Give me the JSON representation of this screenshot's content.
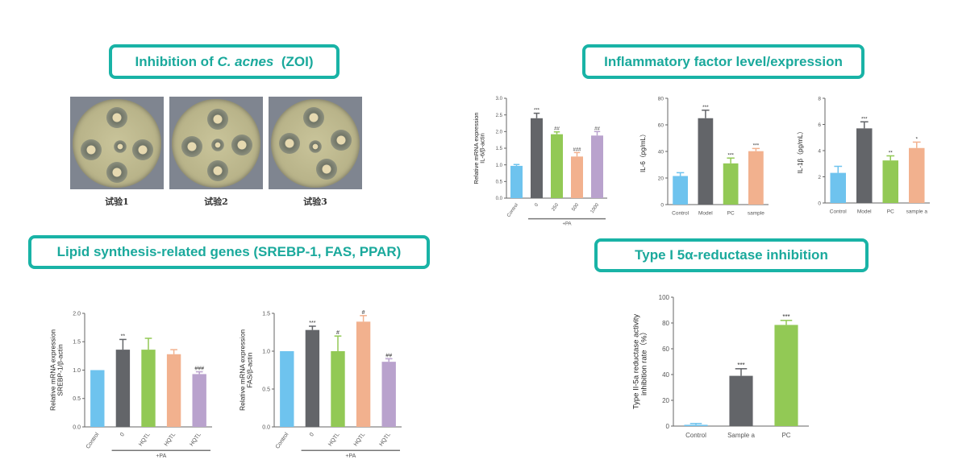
{
  "titles": {
    "zoi_prefix": "Inhibition of ",
    "zoi_italic": "C. acnes",
    "zoi_suffix": "  (ZOI)",
    "inflammatory": "Inflammatory factor level/expression",
    "lipid": "Lipid synthesis-related genes  (SREBP-1, FAS, PPAR)",
    "reductase": "Type I 5α-reductase inhibition"
  },
  "plates": [
    {
      "label": "试验1"
    },
    {
      "label": "试验2"
    },
    {
      "label": "试验3"
    }
  ],
  "colors": {
    "accent": "#19b3a6",
    "blue": "#6ec3ee",
    "gray": "#636569",
    "green": "#92c955",
    "salmon": "#f2b18e",
    "purple": "#b9a2cd"
  },
  "chart_data": [
    {
      "id": "il6_mrna",
      "type": "bar",
      "ylabel": [
        "Relative mRNA expression",
        "IL-6/β-actin"
      ],
      "ylim": [
        0,
        3
      ],
      "ticks": [
        0,
        0.5,
        1,
        1.5,
        2,
        2.5,
        3
      ],
      "categories": [
        "Control",
        "0",
        "250",
        "500",
        "1000"
      ],
      "values": [
        0.97,
        2.4,
        1.92,
        1.25,
        1.88
      ],
      "errors": [
        0.04,
        0.15,
        0.07,
        0.12,
        0.12
      ],
      "annotations": [
        "",
        "***",
        "##",
        "###",
        "##"
      ],
      "colors": [
        "blue",
        "gray",
        "green",
        "salmon",
        "purple"
      ],
      "rotate_labels": true,
      "group_label": "+PA",
      "group_span": [
        1,
        4
      ]
    },
    {
      "id": "il6_protein",
      "type": "bar",
      "ylabel": [
        "IL-6（pg/mL）"
      ],
      "ylim": [
        0,
        80
      ],
      "ticks": [
        0,
        20,
        40,
        60,
        80
      ],
      "categories": [
        "Control",
        "Model",
        "PC",
        "sample"
      ],
      "values": [
        21.5,
        65,
        31,
        40.2
      ],
      "errors": [
        2.5,
        6,
        4,
        2
      ],
      "annotations": [
        "",
        "***",
        "***",
        "***"
      ],
      "colors": [
        "blue",
        "gray",
        "green",
        "salmon"
      ]
    },
    {
      "id": "il1b",
      "type": "bar",
      "ylabel": [
        "IL-1β（pg/mL）"
      ],
      "ylim": [
        0,
        8
      ],
      "ticks": [
        0,
        2,
        4,
        6,
        8
      ],
      "categories": [
        "Control",
        "Model",
        "PC",
        "sample a"
      ],
      "values": [
        2.3,
        5.7,
        3.25,
        4.2
      ],
      "errors": [
        0.5,
        0.5,
        0.35,
        0.45
      ],
      "annotations": [
        "",
        "***",
        "**",
        "*"
      ],
      "colors": [
        "blue",
        "gray",
        "green",
        "salmon"
      ]
    },
    {
      "id": "srebp1",
      "type": "bar",
      "ylabel": [
        "Relative mRNA expression",
        "SREBP-1/β-actin"
      ],
      "ylim": [
        0,
        2
      ],
      "ticks": [
        0,
        0.5,
        1,
        1.5,
        2
      ],
      "categories": [
        "Control",
        "0",
        "HQTL",
        "HQTL",
        "HQTL"
      ],
      "values": [
        1.0,
        1.36,
        1.36,
        1.28,
        0.93
      ],
      "errors": [
        0,
        0.18,
        0.2,
        0.08,
        0.04
      ],
      "annotations": [
        "",
        "**",
        "",
        "",
        "###"
      ],
      "colors": [
        "blue",
        "gray",
        "green",
        "salmon",
        "purple"
      ],
      "rotate_labels": true,
      "group_label": "+PA",
      "group_span": [
        1,
        4
      ]
    },
    {
      "id": "fas",
      "type": "bar",
      "ylabel": [
        "Relative mRNA expression",
        "FAS/β-actin"
      ],
      "ylim": [
        0,
        1.5
      ],
      "ticks": [
        0,
        0.5,
        1,
        1.5
      ],
      "categories": [
        "Control",
        "0",
        "HQTL",
        "HQTL",
        "HQTL"
      ],
      "values": [
        1.0,
        1.28,
        1.0,
        1.39,
        0.86
      ],
      "errors": [
        0,
        0.05,
        0.2,
        0.08,
        0.04
      ],
      "annotations": [
        "",
        "***",
        "#",
        "#",
        "##"
      ],
      "colors": [
        "blue",
        "gray",
        "green",
        "salmon",
        "purple"
      ],
      "rotate_labels": true,
      "group_label": "+PA",
      "group_span": [
        1,
        4
      ]
    },
    {
      "id": "reductase",
      "type": "bar",
      "ylabel": [
        "Type II-5a reductase activity",
        "inhibition rate（%）"
      ],
      "ylim": [
        0,
        100
      ],
      "ticks": [
        0,
        20,
        40,
        60,
        80,
        100
      ],
      "categories": [
        "Control",
        "Sample a",
        "PC"
      ],
      "values": [
        1,
        39,
        78.5
      ],
      "errors": [
        1,
        5.5,
        3.5
      ],
      "annotations": [
        "",
        "***",
        "***"
      ],
      "colors": [
        "blue",
        "gray",
        "green"
      ]
    }
  ]
}
